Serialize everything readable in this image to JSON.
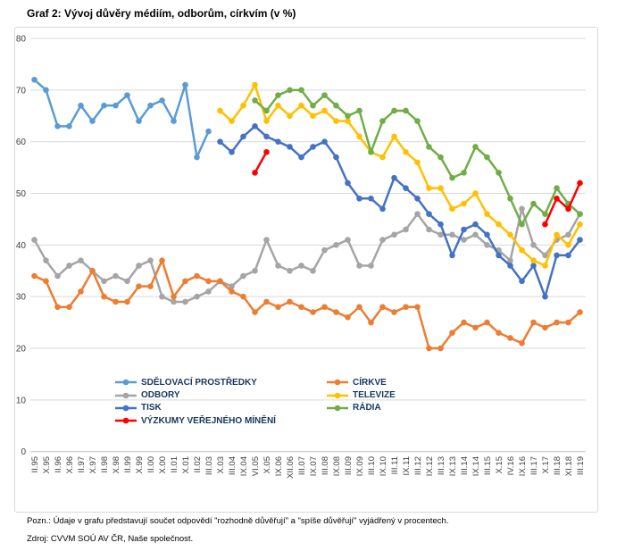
{
  "title": "Graf 2: Vývoj důvěry médiím, odborům, církvím (v %)",
  "notes": {
    "pozn": "Pozn.: Údaje v grafu představují součet odpovědí \"rozhodně důvěřují\" a \"spíše důvěřují\" vyjádřený v procentech.",
    "zdroj": "Zdroj: CVVM SOÚ AV ČR, Naše společnost."
  },
  "legend": {
    "columns": [
      [
        "SDĚLOVACÍ PROSTŘEDKY",
        "ODBORY",
        "TISK",
        "VÝZKUMY VEŘEJNÉHO MÍNĚNÍ"
      ],
      [
        "CÍRKVE",
        "TELEVIZE",
        "RÁDIA"
      ]
    ]
  },
  "chart_data": {
    "type": "line",
    "title": "Graf 2: Vývoj důvěry médiím, odborům, církvím (v %)",
    "xlabel": "",
    "ylabel": "",
    "ylim": [
      0,
      80
    ],
    "ytick_step": 10,
    "grid": true,
    "legend_position": "inside-bottom-left",
    "categories": [
      "II.95",
      "X.95",
      "II.96",
      "X.96",
      "II.97",
      "X.97",
      "II.98",
      "X.98",
      "II.99",
      "X.99",
      "II.00",
      "X.00",
      "II.01",
      "X.01",
      "II.02",
      "III.03",
      "X.03",
      "III.04",
      "IX.04",
      "VI.05",
      "X.05",
      "IX.06",
      "XII.06",
      "III.07",
      "IX.07",
      "III.08",
      "IX.08",
      "III.09",
      "IX.09",
      "III.10",
      "IX.10",
      "III.11",
      "IX.11",
      "III.12",
      "IX.12",
      "III.13",
      "IX.13",
      "III.14",
      "IX.14",
      "III.15",
      "X.15",
      "IV.16",
      "IX.16",
      "III.17",
      "X.17",
      "III.18",
      "XI.18",
      "III.19"
    ],
    "series": [
      {
        "name": "ODBORY",
        "color": "#A5A5A5",
        "values": [
          41,
          37,
          34,
          36,
          37,
          35,
          33,
          34,
          33,
          36,
          37,
          30,
          29,
          29,
          30,
          31,
          33,
          32,
          34,
          35,
          41,
          36,
          35,
          36,
          35,
          39,
          40,
          41,
          36,
          36,
          41,
          42,
          43,
          46,
          43,
          42,
          42,
          41,
          42,
          40,
          39,
          37,
          47,
          40,
          38,
          41,
          42,
          46
        ]
      },
      {
        "name": "CÍRKVE",
        "color": "#ED7D31",
        "values": [
          34,
          33,
          28,
          28,
          31,
          35,
          30,
          29,
          29,
          32,
          32,
          37,
          30,
          33,
          34,
          33,
          33,
          31,
          30,
          27,
          29,
          28,
          29,
          28,
          27,
          28,
          27,
          26,
          28,
          25,
          28,
          27,
          28,
          28,
          20,
          20,
          23,
          25,
          24,
          25,
          23,
          22,
          21,
          25,
          24,
          25,
          25,
          27
        ]
      },
      {
        "name": "SDĚLOVACÍ PROSTŘEDKY",
        "color": "#5B9BD5",
        "values": [
          72,
          70,
          63,
          63,
          67,
          64,
          67,
          67,
          69,
          64,
          67,
          68,
          64,
          71,
          57,
          62,
          null,
          null,
          null,
          null,
          null,
          null,
          null,
          null,
          null,
          null,
          null,
          null,
          null,
          null,
          null,
          null,
          null,
          null,
          null,
          null,
          null,
          null,
          null,
          null,
          null,
          null,
          null,
          null,
          null,
          null,
          null,
          null
        ]
      },
      {
        "name": "TISK",
        "color": "#4472C4",
        "values": [
          null,
          null,
          null,
          null,
          null,
          null,
          null,
          null,
          null,
          null,
          null,
          null,
          null,
          null,
          null,
          null,
          60,
          58,
          61,
          63,
          61,
          60,
          59,
          57,
          59,
          60,
          57,
          52,
          49,
          49,
          47,
          53,
          51,
          49,
          46,
          44,
          38,
          43,
          44,
          42,
          38,
          36,
          33,
          36,
          30,
          38,
          38,
          41
        ]
      },
      {
        "name": "TELEVIZE",
        "color": "#FFC000",
        "values": [
          null,
          null,
          null,
          null,
          null,
          null,
          null,
          null,
          null,
          null,
          null,
          null,
          null,
          null,
          null,
          null,
          66,
          64,
          67,
          71,
          64,
          67,
          65,
          67,
          65,
          66,
          64,
          64,
          61,
          58,
          57,
          61,
          58,
          56,
          51,
          51,
          47,
          48,
          50,
          46,
          44,
          42,
          39,
          37,
          36,
          42,
          40,
          44
        ]
      },
      {
        "name": "RÁDIA",
        "color": "#70AD47",
        "values": [
          null,
          null,
          null,
          null,
          null,
          null,
          null,
          null,
          null,
          null,
          null,
          null,
          null,
          null,
          null,
          null,
          null,
          null,
          null,
          68,
          66,
          69,
          70,
          70,
          67,
          69,
          67,
          65,
          66,
          58,
          64,
          66,
          66,
          64,
          59,
          57,
          53,
          54,
          59,
          57,
          54,
          49,
          44,
          48,
          46,
          51,
          48,
          46
        ]
      },
      {
        "name": "VÝZKUMY VEŘEJNÉHO MÍNĚNÍ",
        "color": "#FF0000",
        "values": [
          null,
          null,
          null,
          null,
          null,
          null,
          null,
          null,
          null,
          null,
          null,
          null,
          null,
          null,
          null,
          null,
          null,
          null,
          null,
          54,
          58,
          null,
          null,
          null,
          null,
          null,
          null,
          null,
          null,
          null,
          null,
          null,
          null,
          null,
          null,
          null,
          null,
          null,
          null,
          null,
          null,
          null,
          null,
          null,
          44,
          49,
          47,
          52
        ]
      }
    ]
  }
}
